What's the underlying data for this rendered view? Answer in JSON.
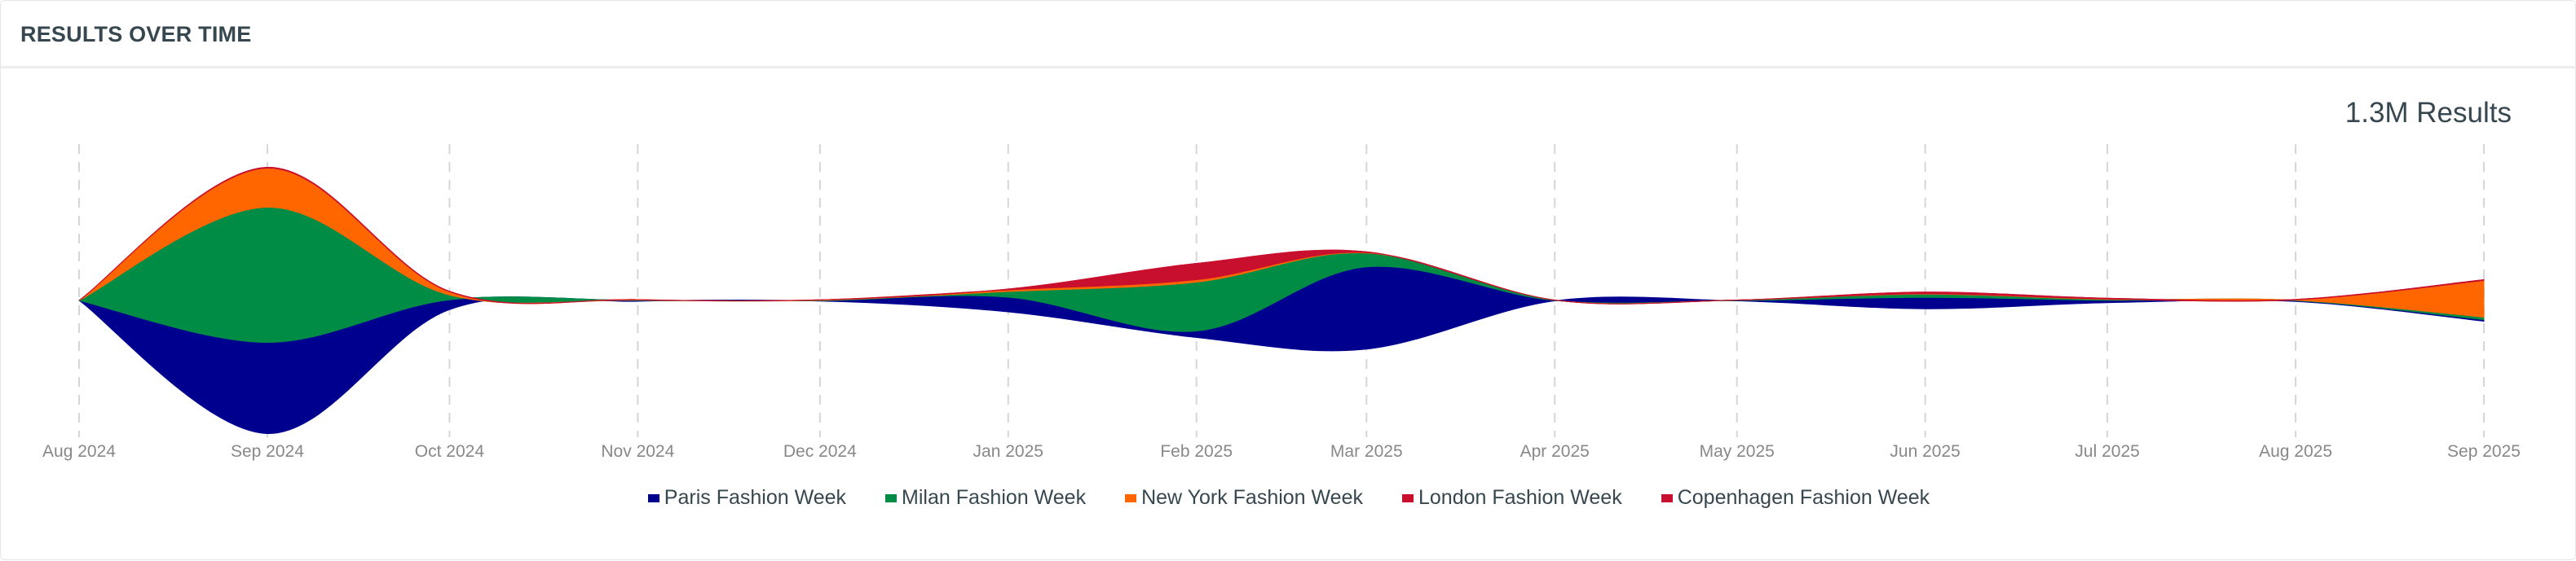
{
  "header": {
    "title": "RESULTS OVER TIME"
  },
  "summary": {
    "total_label": "1.3M Results"
  },
  "chart_data": {
    "type": "area",
    "stacking": "streamgraph-centered",
    "title": "",
    "xlabel": "",
    "ylabel": "",
    "grid": "vertical-dashed",
    "legend_position": "bottom",
    "x": [
      "2024-08-01",
      "2024-09-01",
      "2024-10-01",
      "2024-11-01",
      "2024-12-01",
      "2025-01-01",
      "2025-02-01",
      "2025-03-01",
      "2025-04-01",
      "2025-05-01",
      "2025-06-01",
      "2025-07-01",
      "2025-08-01",
      "2025-09-01"
    ],
    "tick_labels": [
      "Aug 2024",
      "Sep 2024",
      "Oct 2024",
      "Nov 2024",
      "Dec 2024",
      "Jan 2025",
      "Feb 2025",
      "Mar 2025",
      "Apr 2025",
      "May 2025",
      "Jun 2025",
      "Jul 2025",
      "Aug 2025",
      "Sep 2025"
    ],
    "series": [
      {
        "name": "Paris Fashion Week",
        "color": "#00008f",
        "values": [
          0,
          224,
          24,
          2,
          1,
          36,
          16,
          202,
          1,
          1,
          28,
          6,
          2,
          4
        ]
      },
      {
        "name": "Milan Fashion Week",
        "color": "#008c45",
        "values": [
          0,
          332,
          12,
          1,
          1,
          14,
          120,
          34,
          1,
          1,
          8,
          2,
          1,
          6
        ]
      },
      {
        "name": "New York Fashion Week",
        "color": "#ff6600",
        "values": [
          0,
          96,
          8,
          1,
          1,
          4,
          6,
          1,
          0,
          0,
          1,
          1,
          1,
          90
        ]
      },
      {
        "name": "London Fashion Week",
        "color": "#c8102e",
        "values": [
          0,
          2,
          1,
          0,
          0,
          2,
          40,
          2,
          0,
          0,
          4,
          2,
          1,
          2
        ]
      },
      {
        "name": "Copenhagen Fashion Week",
        "color": "#c8102e",
        "values": [
          0,
          0,
          0,
          0,
          0,
          0,
          0,
          0,
          0,
          0,
          0,
          0,
          0,
          0
        ]
      }
    ]
  }
}
